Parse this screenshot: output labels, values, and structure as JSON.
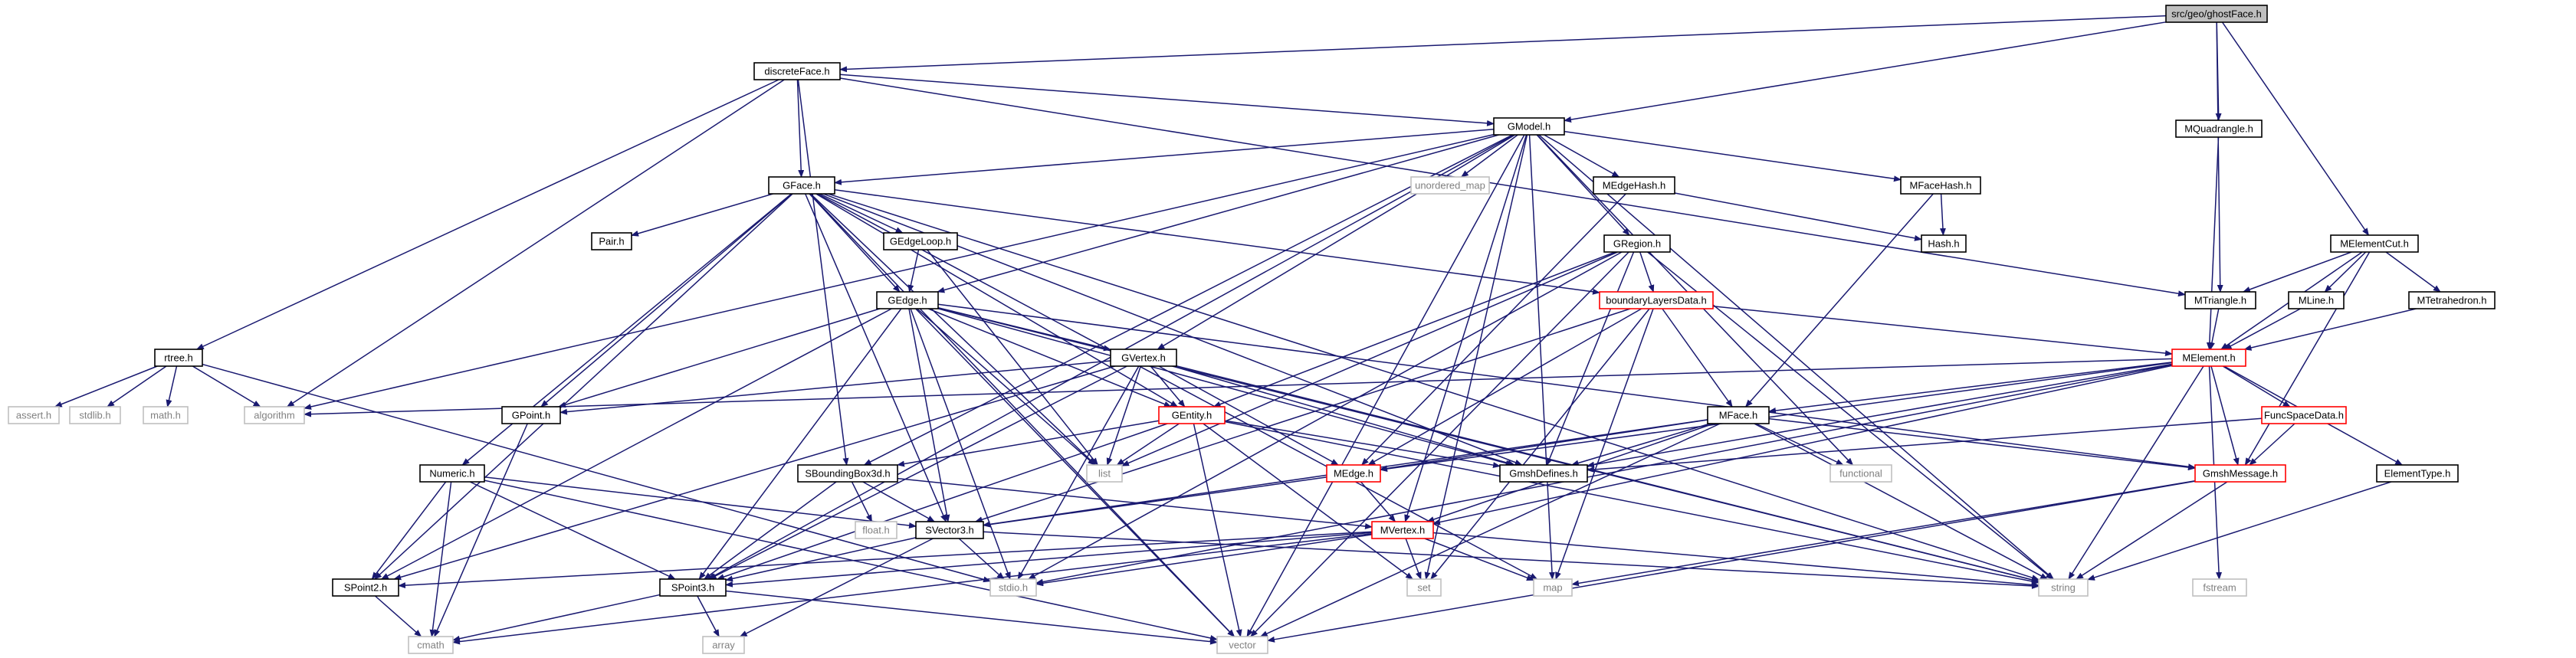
{
  "colors": {
    "edge": "#191970",
    "root_fill": "#bfbfbf",
    "normal_border": "#000000",
    "red_border": "#ff0000",
    "system_border": "#bfbfbf",
    "system_text": "#808080"
  },
  "nodes": [
    {
      "id": "ghostFace",
      "label": "src/geo/ghostFace.h",
      "kind": "root"
    },
    {
      "id": "discreteFace",
      "label": "discreteFace.h",
      "kind": "normal"
    },
    {
      "id": "GModel",
      "label": "GModel.h",
      "kind": "normal"
    },
    {
      "id": "MQuadrangle",
      "label": "MQuadrangle.h",
      "kind": "normal"
    },
    {
      "id": "GFace",
      "label": "GFace.h",
      "kind": "normal"
    },
    {
      "id": "unordered_map",
      "label": "unordered_map",
      "kind": "system"
    },
    {
      "id": "MEdgeHash",
      "label": "MEdgeHash.h",
      "kind": "normal"
    },
    {
      "id": "MFaceHash",
      "label": "MFaceHash.h",
      "kind": "normal"
    },
    {
      "id": "Pair",
      "label": "Pair.h",
      "kind": "normal"
    },
    {
      "id": "GEdgeLoop",
      "label": "GEdgeLoop.h",
      "kind": "normal"
    },
    {
      "id": "GRegion",
      "label": "GRegion.h",
      "kind": "normal"
    },
    {
      "id": "Hash",
      "label": "Hash.h",
      "kind": "normal"
    },
    {
      "id": "MElementCut",
      "label": "MElementCut.h",
      "kind": "normal"
    },
    {
      "id": "GEdge",
      "label": "GEdge.h",
      "kind": "normal"
    },
    {
      "id": "boundaryLayersData",
      "label": "boundaryLayersData.h",
      "kind": "red"
    },
    {
      "id": "MTriangle",
      "label": "MTriangle.h",
      "kind": "normal"
    },
    {
      "id": "MLine",
      "label": "MLine.h",
      "kind": "normal"
    },
    {
      "id": "MTetrahedron",
      "label": "MTetrahedron.h",
      "kind": "normal"
    },
    {
      "id": "rtree",
      "label": "rtree.h",
      "kind": "normal"
    },
    {
      "id": "GVertex",
      "label": "GVertex.h",
      "kind": "normal"
    },
    {
      "id": "MElement",
      "label": "MElement.h",
      "kind": "red"
    },
    {
      "id": "assert",
      "label": "assert.h",
      "kind": "system"
    },
    {
      "id": "stdlib",
      "label": "stdlib.h",
      "kind": "system"
    },
    {
      "id": "math",
      "label": "math.h",
      "kind": "system"
    },
    {
      "id": "algorithm",
      "label": "algorithm",
      "kind": "system"
    },
    {
      "id": "GPoint",
      "label": "GPoint.h",
      "kind": "normal"
    },
    {
      "id": "GEntity",
      "label": "GEntity.h",
      "kind": "red"
    },
    {
      "id": "MFace",
      "label": "MFace.h",
      "kind": "normal"
    },
    {
      "id": "FuncSpaceData",
      "label": "FuncSpaceData.h",
      "kind": "red"
    },
    {
      "id": "Numeric",
      "label": "Numeric.h",
      "kind": "normal"
    },
    {
      "id": "SBoundingBox3d",
      "label": "SBoundingBox3d.h",
      "kind": "normal"
    },
    {
      "id": "list",
      "label": "list",
      "kind": "system"
    },
    {
      "id": "MEdge",
      "label": "MEdge.h",
      "kind": "red"
    },
    {
      "id": "GmshDefines",
      "label": "GmshDefines.h",
      "kind": "normal"
    },
    {
      "id": "functional",
      "label": "functional",
      "kind": "system"
    },
    {
      "id": "GmshMessage",
      "label": "GmshMessage.h",
      "kind": "red"
    },
    {
      "id": "ElementType",
      "label": "ElementType.h",
      "kind": "normal"
    },
    {
      "id": "float",
      "label": "float.h",
      "kind": "system"
    },
    {
      "id": "SVector3",
      "label": "SVector3.h",
      "kind": "normal"
    },
    {
      "id": "MVertex",
      "label": "MVertex.h",
      "kind": "red"
    },
    {
      "id": "SPoint2",
      "label": "SPoint2.h",
      "kind": "normal"
    },
    {
      "id": "SPoint3",
      "label": "SPoint3.h",
      "kind": "normal"
    },
    {
      "id": "stdio",
      "label": "stdio.h",
      "kind": "system"
    },
    {
      "id": "set",
      "label": "set",
      "kind": "system"
    },
    {
      "id": "map",
      "label": "map",
      "kind": "system"
    },
    {
      "id": "string",
      "label": "string",
      "kind": "system"
    },
    {
      "id": "fstream",
      "label": "fstream",
      "kind": "system"
    },
    {
      "id": "cmath",
      "label": "cmath",
      "kind": "system"
    },
    {
      "id": "array",
      "label": "array",
      "kind": "system"
    },
    {
      "id": "vector",
      "label": "vector",
      "kind": "system"
    }
  ],
  "edges": [
    [
      "ghostFace",
      "discreteFace"
    ],
    [
      "ghostFace",
      "GModel"
    ],
    [
      "ghostFace",
      "MQuadrangle"
    ],
    [
      "ghostFace",
      "MTriangle"
    ],
    [
      "ghostFace",
      "MElementCut"
    ],
    [
      "discreteFace",
      "GModel"
    ],
    [
      "discreteFace",
      "GFace"
    ],
    [
      "discreteFace",
      "rtree"
    ],
    [
      "discreteFace",
      "algorithm"
    ],
    [
      "discreteFace",
      "SBoundingBox3d"
    ],
    [
      "discreteFace",
      "MTriangle"
    ],
    [
      "GModel",
      "GFace"
    ],
    [
      "GModel",
      "unordered_map"
    ],
    [
      "GModel",
      "MEdgeHash"
    ],
    [
      "GModel",
      "MFaceHash"
    ],
    [
      "GModel",
      "GRegion"
    ],
    [
      "GModel",
      "GEdge"
    ],
    [
      "GModel",
      "GVertex"
    ],
    [
      "GModel",
      "algorithm"
    ],
    [
      "GModel",
      "SBoundingBox3d"
    ],
    [
      "GModel",
      "SPoint3"
    ],
    [
      "GModel",
      "set"
    ],
    [
      "GModel",
      "map"
    ],
    [
      "GModel",
      "string"
    ],
    [
      "GModel",
      "vector"
    ],
    [
      "GModel",
      "functional"
    ],
    [
      "GModel",
      "MVertex"
    ],
    [
      "MQuadrangle",
      "MElement"
    ],
    [
      "GFace",
      "Pair"
    ],
    [
      "GFace",
      "GEdgeLoop"
    ],
    [
      "GFace",
      "GEdge"
    ],
    [
      "GFace",
      "GPoint"
    ],
    [
      "GFace",
      "GEntity"
    ],
    [
      "GFace",
      "Numeric"
    ],
    [
      "GFace",
      "boundaryLayersData"
    ],
    [
      "GFace",
      "list"
    ],
    [
      "GFace",
      "SPoint2"
    ],
    [
      "GFace",
      "SVector3"
    ],
    [
      "GFace",
      "GmshDefines"
    ],
    [
      "GFace",
      "string"
    ],
    [
      "GFace",
      "vector"
    ],
    [
      "GFace",
      "map"
    ],
    [
      "MEdgeHash",
      "Hash"
    ],
    [
      "MEdgeHash",
      "MEdge"
    ],
    [
      "MFaceHash",
      "Hash"
    ],
    [
      "MFaceHash",
      "MFace"
    ],
    [
      "GEdgeLoop",
      "GEdge"
    ],
    [
      "GEdgeLoop",
      "list"
    ],
    [
      "GRegion",
      "GEntity"
    ],
    [
      "GRegion",
      "boundaryLayersData"
    ],
    [
      "GRegion",
      "list"
    ],
    [
      "GRegion",
      "string"
    ],
    [
      "GRegion",
      "vector"
    ],
    [
      "GRegion",
      "stdio"
    ],
    [
      "GRegion",
      "GmshDefines"
    ],
    [
      "MElementCut",
      "MTriangle"
    ],
    [
      "MElementCut",
      "MLine"
    ],
    [
      "MElementCut",
      "MTetrahedron"
    ],
    [
      "MElementCut",
      "MElement"
    ],
    [
      "MElementCut",
      "GmshMessage"
    ],
    [
      "GEdge",
      "GVertex"
    ],
    [
      "GEdge",
      "GEntity"
    ],
    [
      "GEdge",
      "GPoint"
    ],
    [
      "GEdge",
      "SPoint2"
    ],
    [
      "GEdge",
      "SPoint3"
    ],
    [
      "GEdge",
      "SVector3"
    ],
    [
      "GEdge",
      "stdio"
    ],
    [
      "GEdge",
      "list"
    ],
    [
      "GEdge",
      "GmshDefines"
    ],
    [
      "GEdge",
      "GmshMessage"
    ],
    [
      "GEdge",
      "string"
    ],
    [
      "GEdge",
      "vector"
    ],
    [
      "boundaryLayersData",
      "MElement"
    ],
    [
      "boundaryLayersData",
      "MFace"
    ],
    [
      "boundaryLayersData",
      "MEdge"
    ],
    [
      "boundaryLayersData",
      "SVector3"
    ],
    [
      "boundaryLayersData",
      "set"
    ],
    [
      "boundaryLayersData",
      "map"
    ],
    [
      "MTriangle",
      "MElement"
    ],
    [
      "MLine",
      "MElement"
    ],
    [
      "MTetrahedron",
      "MElement"
    ],
    [
      "rtree",
      "assert"
    ],
    [
      "rtree",
      "stdlib"
    ],
    [
      "rtree",
      "math"
    ],
    [
      "rtree",
      "algorithm"
    ],
    [
      "rtree",
      "stdio"
    ],
    [
      "GVertex",
      "GEntity"
    ],
    [
      "GVertex",
      "GPoint"
    ],
    [
      "GVertex",
      "SPoint2"
    ],
    [
      "GVertex",
      "SPoint3"
    ],
    [
      "GVertex",
      "list"
    ],
    [
      "GVertex",
      "stdio"
    ],
    [
      "GVertex",
      "string"
    ],
    [
      "GVertex",
      "GmshDefines"
    ],
    [
      "GVertex",
      "MEdge"
    ],
    [
      "MElement",
      "algorithm"
    ],
    [
      "MElement",
      "string"
    ],
    [
      "MElement",
      "MFace"
    ],
    [
      "MElement",
      "MEdge"
    ],
    [
      "MElement",
      "FuncSpaceData"
    ],
    [
      "MElement",
      "GmshMessage"
    ],
    [
      "MElement",
      "ElementType"
    ],
    [
      "MElement",
      "MVertex"
    ],
    [
      "MElement",
      "GmshDefines"
    ],
    [
      "MElement",
      "stdio"
    ],
    [
      "MElement",
      "fstream"
    ],
    [
      "GPoint",
      "cmath"
    ],
    [
      "GEntity",
      "list"
    ],
    [
      "GEntity",
      "set"
    ],
    [
      "GEntity",
      "string"
    ],
    [
      "GEntity",
      "vector"
    ],
    [
      "GEntity",
      "SBoundingBox3d"
    ],
    [
      "GEntity",
      "SPoint3"
    ],
    [
      "GEntity",
      "GmshDefines"
    ],
    [
      "MFace",
      "MEdge"
    ],
    [
      "MFace",
      "MVertex"
    ],
    [
      "MFace",
      "SVector3"
    ],
    [
      "MFace",
      "GmshDefines"
    ],
    [
      "MFace",
      "GmshMessage"
    ],
    [
      "MFace",
      "functional"
    ],
    [
      "MFace",
      "vector"
    ],
    [
      "MFace",
      "string"
    ],
    [
      "FuncSpaceData",
      "GmshMessage"
    ],
    [
      "FuncSpaceData",
      "GmshDefines"
    ],
    [
      "Numeric",
      "SPoint2"
    ],
    [
      "Numeric",
      "SPoint3"
    ],
    [
      "Numeric",
      "SVector3"
    ],
    [
      "Numeric",
      "cmath"
    ],
    [
      "Numeric",
      "vector"
    ],
    [
      "SBoundingBox3d",
      "float"
    ],
    [
      "SBoundingBox3d",
      "SPoint3"
    ],
    [
      "SBoundingBox3d",
      "SVector3"
    ],
    [
      "SBoundingBox3d",
      "MVertex"
    ],
    [
      "MEdge",
      "MVertex"
    ],
    [
      "MEdge",
      "SVector3"
    ],
    [
      "GmshMessage",
      "map"
    ],
    [
      "GmshMessage",
      "string"
    ],
    [
      "GmshMessage",
      "vector"
    ],
    [
      "ElementType",
      "string"
    ],
    [
      "SVector3",
      "SPoint3"
    ],
    [
      "SVector3",
      "string"
    ],
    [
      "SVector3",
      "stdio"
    ],
    [
      "SVector3",
      "array"
    ],
    [
      "MVertex",
      "SPoint2"
    ],
    [
      "MVertex",
      "SPoint3"
    ],
    [
      "MVertex",
      "stdio"
    ],
    [
      "MVertex",
      "set"
    ],
    [
      "MVertex",
      "map"
    ],
    [
      "MVertex",
      "cmath"
    ],
    [
      "MVertex",
      "string"
    ],
    [
      "SPoint2",
      "cmath"
    ],
    [
      "SPoint3",
      "cmath"
    ],
    [
      "SPoint3",
      "array"
    ],
    [
      "SPoint3",
      "vector"
    ]
  ]
}
